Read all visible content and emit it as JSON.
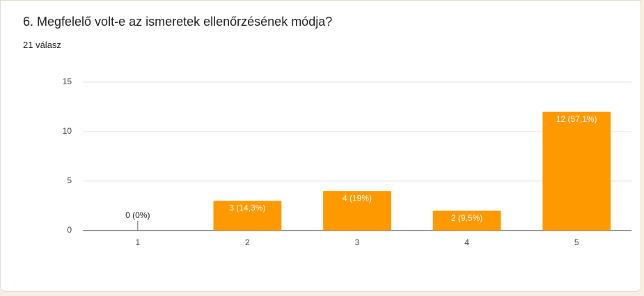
{
  "title": "6. Megfelelő volt-e az ismeretek ellenőrzésének módja?",
  "subtitle": "21 válasz",
  "chart_data": {
    "type": "bar",
    "categories": [
      "1",
      "2",
      "3",
      "4",
      "5"
    ],
    "values": [
      0,
      3,
      4,
      2,
      12
    ],
    "value_labels": [
      "0 (0%)",
      "3 (14,3%)",
      "4 (19%)",
      "2 (9,5%)",
      "12 (57,1%)"
    ],
    "color": "#ff9900",
    "ylim": [
      0,
      15
    ],
    "yticks": [
      0,
      5,
      10,
      15
    ],
    "grid": true
  }
}
